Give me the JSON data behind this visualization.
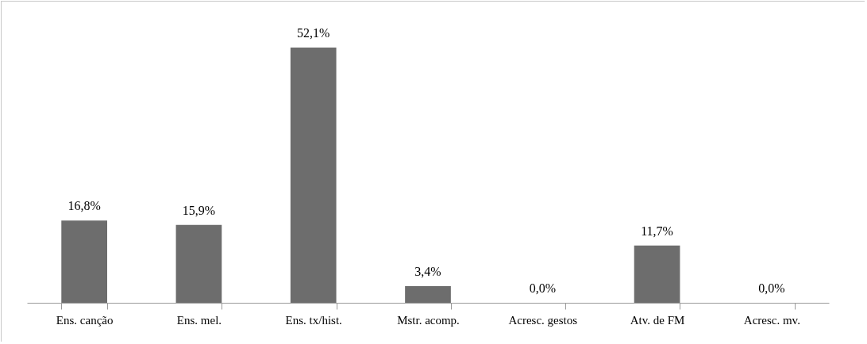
{
  "chart_data": {
    "type": "bar",
    "categories": [
      "Ens. canção",
      "Ens. mel.",
      "Ens. tx/hist.",
      "Mstr. acomp.",
      "Acresc. gestos",
      "Atv. de FM",
      "Acresc. mv."
    ],
    "values": [
      16.8,
      15.9,
      52.1,
      3.4,
      0.0,
      11.7,
      0.0
    ],
    "value_labels": [
      "16,8%",
      "15,9%",
      "52,1%",
      "3,4%",
      "0,0%",
      "11,7%",
      "0,0%"
    ],
    "color": "#6d6d6d",
    "grid": false,
    "tick_labels": "x"
  }
}
